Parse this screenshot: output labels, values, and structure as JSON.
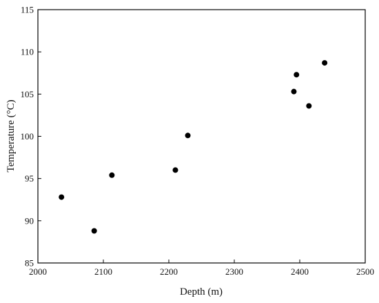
{
  "chart_data": {
    "type": "scatter",
    "title": "",
    "xlabel": "Depth (m)",
    "ylabel": "Temperature  (°C)",
    "xlim": [
      2000,
      2500
    ],
    "ylim": [
      85,
      115
    ],
    "xticks": [
      2000,
      2100,
      2200,
      2300,
      2400,
      2500
    ],
    "yticks": [
      85,
      90,
      95,
      100,
      105,
      110,
      115
    ],
    "grid": false,
    "marker_color": "#000000",
    "series": [
      {
        "x": [
          2036,
          2086,
          2113,
          2210,
          2229,
          2391,
          2395,
          2414,
          2438
        ],
        "y": [
          92.8,
          88.8,
          95.4,
          96.0,
          100.1,
          105.3,
          107.3,
          103.6,
          108.7
        ]
      }
    ]
  }
}
